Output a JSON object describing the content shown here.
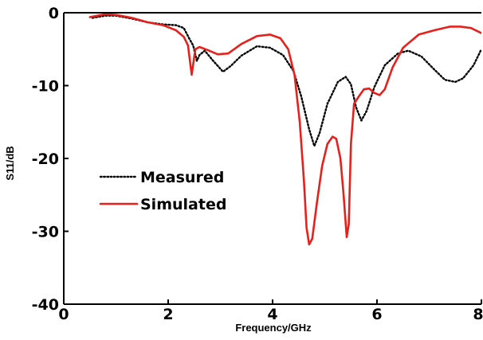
{
  "chart_data": {
    "type": "line",
    "title": "",
    "xlabel": "Frequency/GHz",
    "ylabel": "S11/dB",
    "xlim": [
      0,
      8
    ],
    "ylim": [
      -40,
      0
    ],
    "xticks": [
      0,
      2,
      4,
      6,
      8
    ],
    "yticks": [
      0,
      -10,
      -20,
      -30,
      -40
    ],
    "grid": false,
    "legend_position": "left",
    "series": [
      {
        "name": "Measured",
        "color": "#000000",
        "style": "dotted",
        "points": [
          [
            0.55,
            -0.7
          ],
          [
            0.8,
            -0.4
          ],
          [
            1.0,
            -0.4
          ],
          [
            1.3,
            -0.8
          ],
          [
            1.6,
            -1.3
          ],
          [
            1.9,
            -1.6
          ],
          [
            2.15,
            -1.7
          ],
          [
            2.3,
            -2.1
          ],
          [
            2.4,
            -3.5
          ],
          [
            2.48,
            -4.5
          ],
          [
            2.55,
            -6.6
          ],
          [
            2.6,
            -5.8
          ],
          [
            2.7,
            -5.2
          ],
          [
            2.85,
            -6.5
          ],
          [
            3.05,
            -8.1
          ],
          [
            3.2,
            -7.3
          ],
          [
            3.4,
            -5.9
          ],
          [
            3.7,
            -4.6
          ],
          [
            3.95,
            -4.8
          ],
          [
            4.2,
            -5.8
          ],
          [
            4.4,
            -8.0
          ],
          [
            4.55,
            -11.5
          ],
          [
            4.7,
            -16.0
          ],
          [
            4.8,
            -18.3
          ],
          [
            4.9,
            -16.5
          ],
          [
            5.05,
            -12.5
          ],
          [
            5.25,
            -9.5
          ],
          [
            5.4,
            -8.8
          ],
          [
            5.5,
            -9.8
          ],
          [
            5.6,
            -13.0
          ],
          [
            5.7,
            -14.8
          ],
          [
            5.8,
            -13.5
          ],
          [
            5.95,
            -10.2
          ],
          [
            6.15,
            -7.2
          ],
          [
            6.4,
            -5.6
          ],
          [
            6.6,
            -5.2
          ],
          [
            6.85,
            -6.0
          ],
          [
            7.1,
            -7.8
          ],
          [
            7.3,
            -9.2
          ],
          [
            7.5,
            -9.5
          ],
          [
            7.65,
            -9.0
          ],
          [
            7.85,
            -7.2
          ],
          [
            8.0,
            -5.0
          ]
        ]
      },
      {
        "name": "Simulated",
        "color": "#e8201c",
        "style": "solid",
        "points": [
          [
            0.5,
            -0.6
          ],
          [
            0.8,
            -0.2
          ],
          [
            1.0,
            -0.3
          ],
          [
            1.3,
            -0.7
          ],
          [
            1.6,
            -1.3
          ],
          [
            1.9,
            -1.7
          ],
          [
            2.15,
            -2.4
          ],
          [
            2.3,
            -3.3
          ],
          [
            2.38,
            -4.5
          ],
          [
            2.45,
            -8.5
          ],
          [
            2.52,
            -5.0
          ],
          [
            2.6,
            -4.7
          ],
          [
            2.75,
            -5.1
          ],
          [
            2.95,
            -5.7
          ],
          [
            3.15,
            -5.6
          ],
          [
            3.4,
            -4.3
          ],
          [
            3.7,
            -3.2
          ],
          [
            3.95,
            -3.0
          ],
          [
            4.15,
            -3.5
          ],
          [
            4.3,
            -5.0
          ],
          [
            4.42,
            -8.5
          ],
          [
            4.52,
            -15.0
          ],
          [
            4.6,
            -23.0
          ],
          [
            4.65,
            -29.5
          ],
          [
            4.7,
            -31.8
          ],
          [
            4.76,
            -31.0
          ],
          [
            4.85,
            -26.0
          ],
          [
            4.95,
            -21.0
          ],
          [
            5.05,
            -18.0
          ],
          [
            5.15,
            -17.0
          ],
          [
            5.22,
            -17.3
          ],
          [
            5.3,
            -20.0
          ],
          [
            5.36,
            -25.0
          ],
          [
            5.42,
            -30.8
          ],
          [
            5.46,
            -29.0
          ],
          [
            5.5,
            -18.0
          ],
          [
            5.56,
            -12.5
          ],
          [
            5.65,
            -11.5
          ],
          [
            5.75,
            -10.5
          ],
          [
            5.85,
            -10.4
          ],
          [
            5.95,
            -11.0
          ],
          [
            6.05,
            -11.3
          ],
          [
            6.15,
            -10.5
          ],
          [
            6.3,
            -7.5
          ],
          [
            6.5,
            -4.8
          ],
          [
            6.8,
            -3.0
          ],
          [
            7.1,
            -2.4
          ],
          [
            7.4,
            -1.9
          ],
          [
            7.6,
            -1.9
          ],
          [
            7.8,
            -2.1
          ],
          [
            8.0,
            -2.8
          ]
        ]
      }
    ]
  }
}
